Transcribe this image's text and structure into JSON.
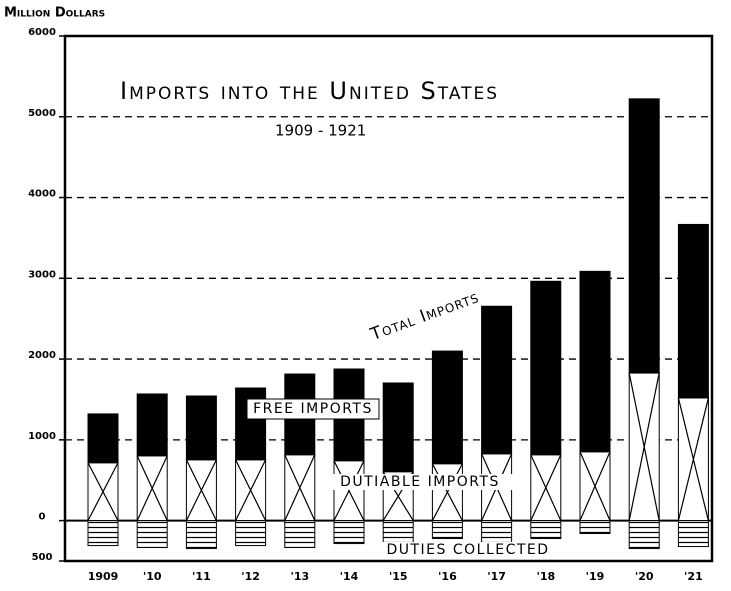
{
  "chart_data": {
    "type": "stacked-bar",
    "title": "Imports into the United States",
    "subtitle": "1909 - 1921",
    "y_label": "Million Dollars",
    "annotation": "Total Imports",
    "categories": [
      "1909",
      "'10",
      "'11",
      "'12",
      "'13",
      "'14",
      "'15",
      "'16",
      "'17",
      "'18",
      "'19",
      "'20",
      "'21"
    ],
    "series": [
      {
        "name": "Dutiable Imports",
        "color": "#ffffff",
        "hatch": "cross",
        "values": [
          716,
          802,
          753,
          753,
          815,
          741,
          605,
          704,
          827,
          815,
          852,
          1827,
          1519
        ]
      },
      {
        "name": "Free Imports",
        "color": "#000000",
        "values": [
          605,
          766,
          790,
          889,
          1000,
          1136,
          1099,
          1395,
          1827,
          2148,
          2234,
          3395,
          2148
        ]
      },
      {
        "name": "Duties Collected",
        "color": "#ffffff",
        "hatch": "lines",
        "values": [
          -309,
          -333,
          -346,
          -309,
          -333,
          -284,
          -309,
          -222,
          -296,
          -222,
          -160,
          -346,
          -321
        ]
      }
    ],
    "ylim": [
      -500,
      6000
    ],
    "yticks": [
      {
        "value": -500,
        "label": "500"
      },
      0,
      1000,
      2000,
      3000,
      4000,
      5000,
      6000
    ],
    "grid": true
  }
}
